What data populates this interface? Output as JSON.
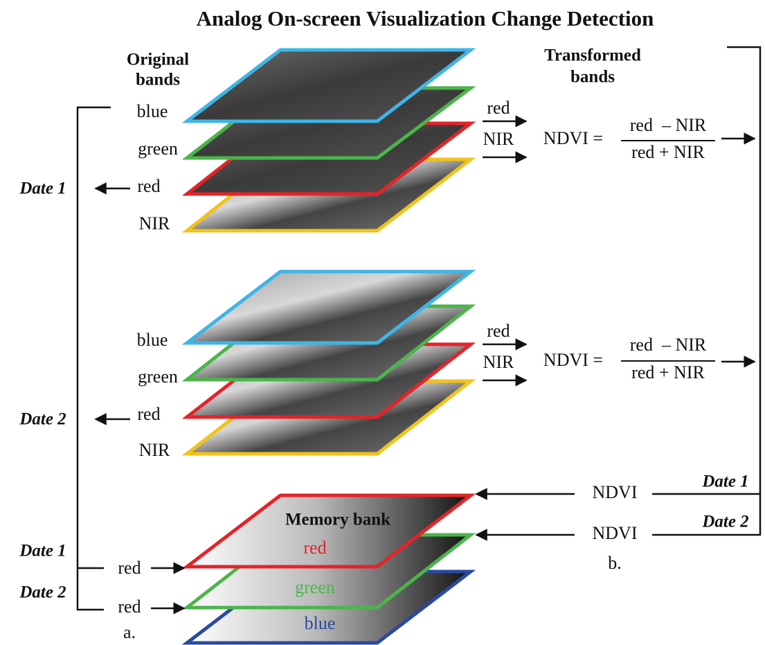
{
  "title": "Analog On-screen Visualization Change Detection",
  "headers": {
    "original": [
      "Original",
      "bands"
    ],
    "transformed": [
      "Transformed",
      "bands"
    ]
  },
  "stacks": [
    {
      "date": "Date 1",
      "bands": [
        "blue",
        "green",
        "red",
        "NIR"
      ],
      "outputs": [
        "red",
        "NIR"
      ],
      "formula": {
        "lhs": "NDVI =",
        "numerator": "red  – NIR",
        "denominator": "red + NIR"
      }
    },
    {
      "date": "Date 2",
      "bands": [
        "blue",
        "green",
        "red",
        "NIR"
      ],
      "outputs": [
        "red",
        "NIR"
      ],
      "formula": {
        "lhs": "NDVI =",
        "numerator": "red  – NIR",
        "denominator": "red + NIR"
      }
    }
  ],
  "memory_bank": {
    "title": "Memory bank",
    "layers": [
      "red",
      "green",
      "blue"
    ],
    "inputs": [
      {
        "date": "Date 1",
        "band": "red"
      },
      {
        "date": "Date 2",
        "band": "red"
      }
    ],
    "label": "a."
  },
  "feedback": {
    "rows": [
      {
        "date": "Date 1",
        "label": "NDVI"
      },
      {
        "date": "Date 2",
        "label": "NDVI"
      }
    ],
    "label": "b."
  }
}
